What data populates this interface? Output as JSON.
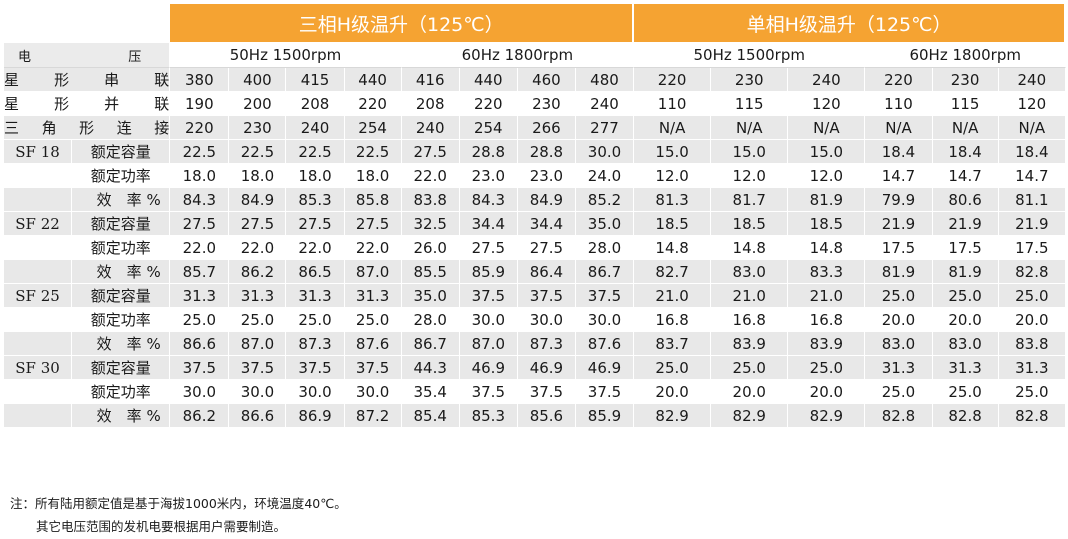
{
  "header": {
    "three_phase": "三相H级温升（125℃）",
    "single_phase": "单相H级温升（125℃）"
  },
  "subheader": {
    "voltage_label": "电　　　压",
    "freq_50": "50Hz  1500rpm",
    "freq_60": "60Hz  1800rpm"
  },
  "voltage_rows": [
    {
      "label": "星形串联",
      "values": [
        "380",
        "400",
        "415",
        "440",
        "416",
        "440",
        "460",
        "480",
        "220",
        "230",
        "240",
        "220",
        "230",
        "240"
      ]
    },
    {
      "label": "星形并联",
      "values": [
        "190",
        "200",
        "208",
        "220",
        "208",
        "220",
        "230",
        "240",
        "110",
        "115",
        "120",
        "110",
        "115",
        "120"
      ]
    },
    {
      "label": "三角形连接",
      "values": [
        "220",
        "230",
        "240",
        "254",
        "240",
        "254",
        "266",
        "277",
        "N/A",
        "N/A",
        "N/A",
        "N/A",
        "N/A",
        "N/A"
      ]
    }
  ],
  "models": [
    {
      "name": "SF 18",
      "rows": [
        {
          "metric": "额定容量",
          "values": [
            "22.5",
            "22.5",
            "22.5",
            "22.5",
            "27.5",
            "28.8",
            "28.8",
            "30.0",
            "15.0",
            "15.0",
            "15.0",
            "18.4",
            "18.4",
            "18.4"
          ]
        },
        {
          "metric": "额定功率",
          "values": [
            "18.0",
            "18.0",
            "18.0",
            "18.0",
            "22.0",
            "23.0",
            "23.0",
            "24.0",
            "12.0",
            "12.0",
            "12.0",
            "14.7",
            "14.7",
            "14.7"
          ]
        },
        {
          "metric": "效　率 %",
          "values": [
            "84.3",
            "84.9",
            "85.3",
            "85.8",
            "83.8",
            "84.3",
            "84.9",
            "85.2",
            "81.3",
            "81.7",
            "81.9",
            "79.9",
            "80.6",
            "81.1"
          ]
        }
      ]
    },
    {
      "name": "SF 22",
      "rows": [
        {
          "metric": "额定容量",
          "values": [
            "27.5",
            "27.5",
            "27.5",
            "27.5",
            "32.5",
            "34.4",
            "34.4",
            "35.0",
            "18.5",
            "18.5",
            "18.5",
            "21.9",
            "21.9",
            "21.9"
          ]
        },
        {
          "metric": "额定功率",
          "values": [
            "22.0",
            "22.0",
            "22.0",
            "22.0",
            "26.0",
            "27.5",
            "27.5",
            "28.0",
            "14.8",
            "14.8",
            "14.8",
            "17.5",
            "17.5",
            "17.5"
          ]
        },
        {
          "metric": "效　率 %",
          "values": [
            "85.7",
            "86.2",
            "86.5",
            "87.0",
            "85.5",
            "85.9",
            "86.4",
            "86.7",
            "82.7",
            "83.0",
            "83.3",
            "81.9",
            "81.9",
            "82.8"
          ]
        }
      ]
    },
    {
      "name": "SF 25",
      "rows": [
        {
          "metric": "额定容量",
          "values": [
            "31.3",
            "31.3",
            "31.3",
            "31.3",
            "35.0",
            "37.5",
            "37.5",
            "37.5",
            "21.0",
            "21.0",
            "21.0",
            "25.0",
            "25.0",
            "25.0"
          ]
        },
        {
          "metric": "额定功率",
          "values": [
            "25.0",
            "25.0",
            "25.0",
            "25.0",
            "28.0",
            "30.0",
            "30.0",
            "30.0",
            "16.8",
            "16.8",
            "16.8",
            "20.0",
            "20.0",
            "20.0"
          ]
        },
        {
          "metric": "效　率 %",
          "values": [
            "86.6",
            "87.0",
            "87.3",
            "87.6",
            "86.7",
            "87.0",
            "87.3",
            "87.6",
            "83.7",
            "83.9",
            "83.9",
            "83.0",
            "83.0",
            "83.8"
          ]
        }
      ]
    },
    {
      "name": "SF 30",
      "rows": [
        {
          "metric": "额定容量",
          "values": [
            "37.5",
            "37.5",
            "37.5",
            "37.5",
            "44.3",
            "46.9",
            "46.9",
            "46.9",
            "25.0",
            "25.0",
            "25.0",
            "31.3",
            "31.3",
            "31.3"
          ]
        },
        {
          "metric": "额定功率",
          "values": [
            "30.0",
            "30.0",
            "30.0",
            "30.0",
            "35.4",
            "37.5",
            "37.5",
            "37.5",
            "20.0",
            "20.0",
            "20.0",
            "25.0",
            "25.0",
            "25.0"
          ]
        },
        {
          "metric": "效　率 %",
          "values": [
            "86.2",
            "86.6",
            "86.9",
            "87.2",
            "85.4",
            "85.3",
            "85.6",
            "85.9",
            "82.9",
            "82.9",
            "82.9",
            "82.8",
            "82.8",
            "82.8"
          ]
        }
      ]
    }
  ],
  "notes": {
    "line1": "注：所有陆用额定值是基于海拔1000米内，环境温度40℃。",
    "line2": "其它电压范围的发机电要根据用户需要制造。"
  }
}
